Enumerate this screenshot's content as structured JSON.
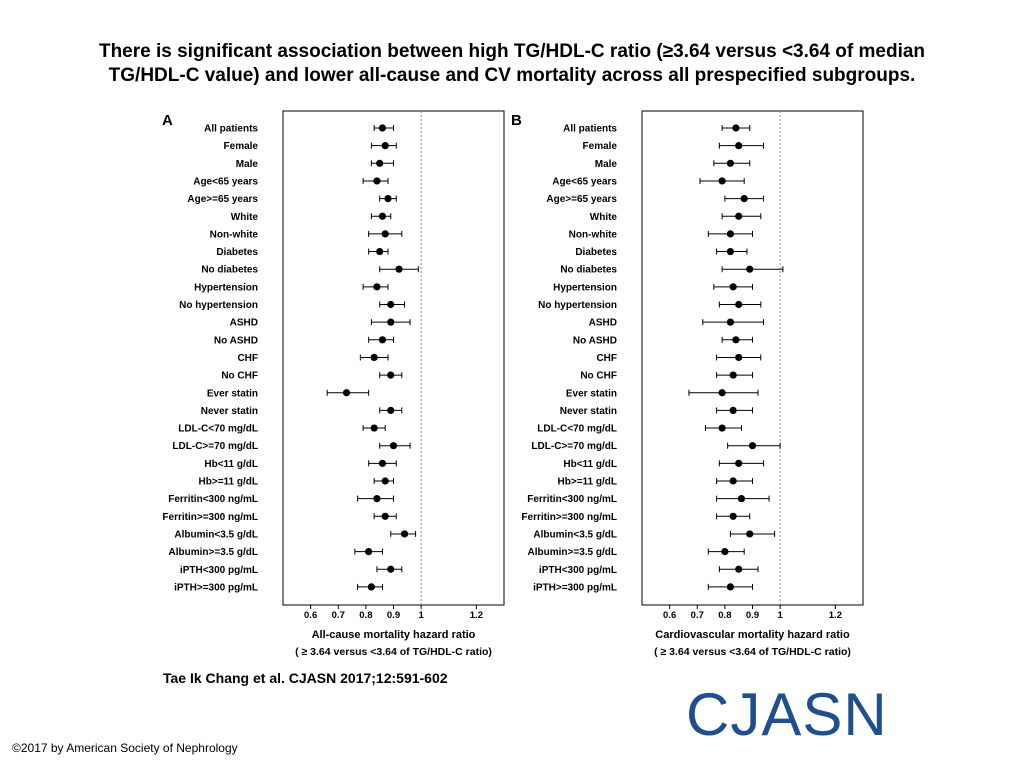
{
  "slide": {
    "title_line1": "There is significant association between high TG/HDL-C ratio (≥3.64 versus <3.64 of median",
    "title_line2": "TG/HDL-C value) and lower all-cause and CV mortality across all prespecified subgroups.",
    "citation": "Tae Ik Chang et al. CJASN 2017;12:591-602",
    "logo": "CJASN",
    "copyright": "©2017 by American Society of Nephrology"
  },
  "colors": {
    "marker": "#000000",
    "reference_line": "#888888",
    "logo": "#1f4f8f"
  },
  "chart_data": [
    {
      "type": "scatter",
      "panel_label": "A",
      "subtype": "forest-plot",
      "xlabel_line1": "All-cause mortality hazard ratio",
      "xlabel_line2": "( ≥ 3.64 versus <3.64 of TG/HDL-C ratio)",
      "xlim": [
        0.5,
        1.3
      ],
      "xticks": [
        0.6,
        0.7,
        0.8,
        0.9,
        1,
        1.2
      ],
      "xtick_labels": [
        "0.6",
        "0.7",
        "0.8",
        "0.9",
        "1",
        "1.2"
      ],
      "reference_line": 1,
      "categories": [
        "All patients",
        "Female",
        "Male",
        "Age<65 years",
        "Age>=65 years",
        "White",
        "Non-white",
        "Diabetes",
        "No diabetes",
        "Hypertension",
        "No hypertension",
        "ASHD",
        "No ASHD",
        "CHF",
        "No CHF",
        "Ever statin",
        "Never statin",
        "LDL-C<70 mg/dL",
        "LDL-C>=70 mg/dL",
        "Hb<11 g/dL",
        "Hb>=11 g/dL",
        "Ferritin<300 ng/mL",
        "Ferritin>=300 ng/mL",
        "Albumin<3.5 g/dL",
        "Albumin>=3.5 g/dL",
        "iPTH<300 pg/mL",
        "iPTH>=300 pg/mL"
      ],
      "estimates": [
        0.86,
        0.87,
        0.85,
        0.84,
        0.88,
        0.86,
        0.87,
        0.85,
        0.92,
        0.84,
        0.89,
        0.89,
        0.86,
        0.83,
        0.89,
        0.73,
        0.89,
        0.83,
        0.9,
        0.86,
        0.87,
        0.84,
        0.87,
        0.94,
        0.81,
        0.89,
        0.82
      ],
      "lower": [
        0.83,
        0.82,
        0.82,
        0.79,
        0.85,
        0.82,
        0.81,
        0.81,
        0.85,
        0.79,
        0.85,
        0.82,
        0.81,
        0.78,
        0.85,
        0.66,
        0.85,
        0.79,
        0.85,
        0.81,
        0.83,
        0.77,
        0.83,
        0.89,
        0.76,
        0.84,
        0.77
      ],
      "upper": [
        0.9,
        0.91,
        0.9,
        0.88,
        0.91,
        0.89,
        0.93,
        0.88,
        0.99,
        0.88,
        0.94,
        0.96,
        0.9,
        0.88,
        0.93,
        0.81,
        0.93,
        0.87,
        0.96,
        0.91,
        0.9,
        0.9,
        0.91,
        0.98,
        0.86,
        0.93,
        0.86
      ]
    },
    {
      "type": "scatter",
      "panel_label": "B",
      "subtype": "forest-plot",
      "xlabel_line1": "Cardiovascular mortality hazard ratio",
      "xlabel_line2": "( ≥ 3.64 versus <3.64 of TG/HDL-C ratio)",
      "xlim": [
        0.5,
        1.3
      ],
      "xticks": [
        0.6,
        0.7,
        0.8,
        0.9,
        1,
        1.2
      ],
      "xtick_labels": [
        "0.6",
        "0.7",
        "0.8",
        "0.9",
        "1",
        "1.2"
      ],
      "reference_line": 1,
      "categories": [
        "All patients",
        "Female",
        "Male",
        "Age<65 years",
        "Age>=65 years",
        "White",
        "Non-white",
        "Diabetes",
        "No diabetes",
        "Hypertension",
        "No hypertension",
        "ASHD",
        "No ASHD",
        "CHF",
        "No CHF",
        "Ever statin",
        "Never statin",
        "LDL-C<70 mg/dL",
        "LDL-C>=70 mg/dL",
        "Hb<11 g/dL",
        "Hb>=11 g/dL",
        "Ferritin<300 ng/mL",
        "Ferritin>=300 ng/mL",
        "Albumin<3.5 g/dL",
        "Albumin>=3.5 g/dL",
        "iPTH<300 pg/mL",
        "iPTH>=300 pg/mL"
      ],
      "estimates": [
        0.84,
        0.85,
        0.82,
        0.79,
        0.87,
        0.85,
        0.82,
        0.82,
        0.89,
        0.83,
        0.85,
        0.82,
        0.84,
        0.85,
        0.83,
        0.79,
        0.83,
        0.79,
        0.9,
        0.85,
        0.83,
        0.86,
        0.83,
        0.89,
        0.8,
        0.85,
        0.82
      ],
      "lower": [
        0.79,
        0.78,
        0.76,
        0.71,
        0.8,
        0.79,
        0.74,
        0.77,
        0.79,
        0.76,
        0.78,
        0.72,
        0.79,
        0.77,
        0.77,
        0.67,
        0.77,
        0.73,
        0.81,
        0.78,
        0.77,
        0.77,
        0.77,
        0.82,
        0.74,
        0.78,
        0.74
      ],
      "upper": [
        0.89,
        0.94,
        0.89,
        0.87,
        0.94,
        0.93,
        0.9,
        0.88,
        1.01,
        0.9,
        0.93,
        0.94,
        0.9,
        0.93,
        0.9,
        0.92,
        0.9,
        0.86,
        1.0,
        0.94,
        0.9,
        0.96,
        0.89,
        0.98,
        0.87,
        0.92,
        0.9
      ]
    }
  ]
}
